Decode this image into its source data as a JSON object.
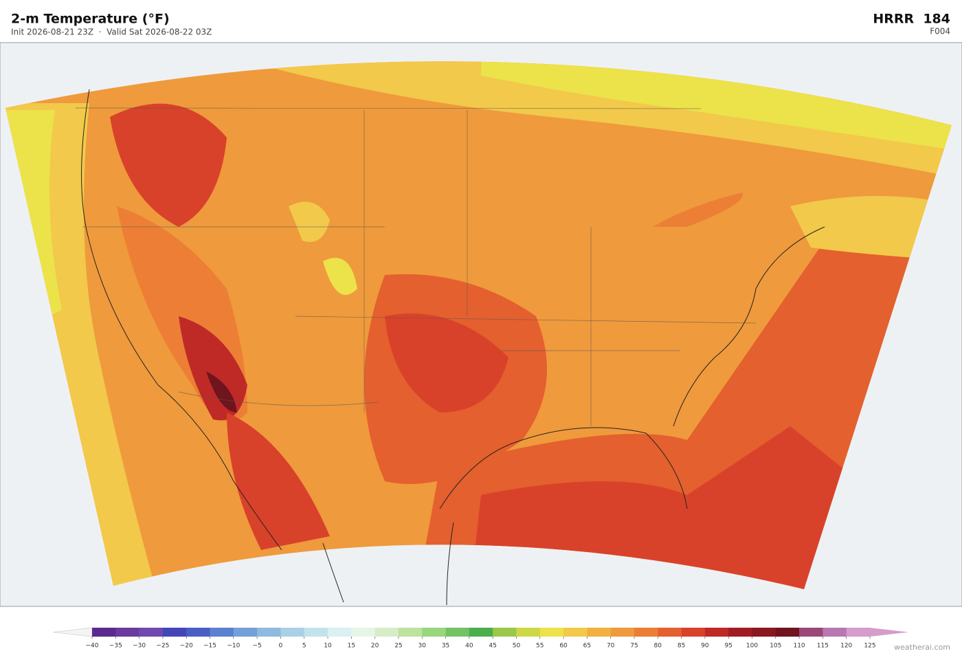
{
  "header": {
    "title": "2-m Temperature  (°F)",
    "subtitle": "Init 2026-08-21 23Z  ·  Valid Sat 2026-08-22 03Z",
    "model": "HRRR  184",
    "forecast_hour": "F004"
  },
  "colorbar": {
    "under_color": "#f4f4f4",
    "over_color": "#d59ccc",
    "colors": [
      "#5b2a8e",
      "#6a3a9e",
      "#7048b0",
      "#4446b8",
      "#4a5fc4",
      "#5b82d0",
      "#73a0d8",
      "#8ebadf",
      "#a9d1e6",
      "#c2e3ee",
      "#daf0f2",
      "#e6f5e6",
      "#d6edc8",
      "#bde39e",
      "#9ad57f",
      "#74c266",
      "#4cae4c",
      "#9bc84a",
      "#cdd845",
      "#ece24a",
      "#f2c94a",
      "#f1b040",
      "#ef9a3c",
      "#ec7f35",
      "#e4602e",
      "#d9422a",
      "#c02a26",
      "#a11c22",
      "#8a1820",
      "#70141e",
      "#9a4878",
      "#b878b2",
      "#d59ccc"
    ],
    "ticks": [
      {
        "value": -40,
        "label": "−40"
      },
      {
        "value": -35,
        "label": "−35"
      },
      {
        "value": -30,
        "label": "−30"
      },
      {
        "value": -25,
        "label": "−25"
      },
      {
        "value": -20,
        "label": "−20"
      },
      {
        "value": -15,
        "label": "−15"
      },
      {
        "value": -10,
        "label": "−10"
      },
      {
        "value": -5,
        "label": "−5"
      },
      0,
      5,
      10,
      15,
      20,
      25,
      30,
      35,
      40,
      45,
      50,
      55,
      60,
      65,
      70,
      75,
      80,
      85,
      90,
      95,
      100,
      105,
      110,
      115,
      120,
      125
    ]
  },
  "footer": {
    "credit": "weatherai.com"
  }
}
